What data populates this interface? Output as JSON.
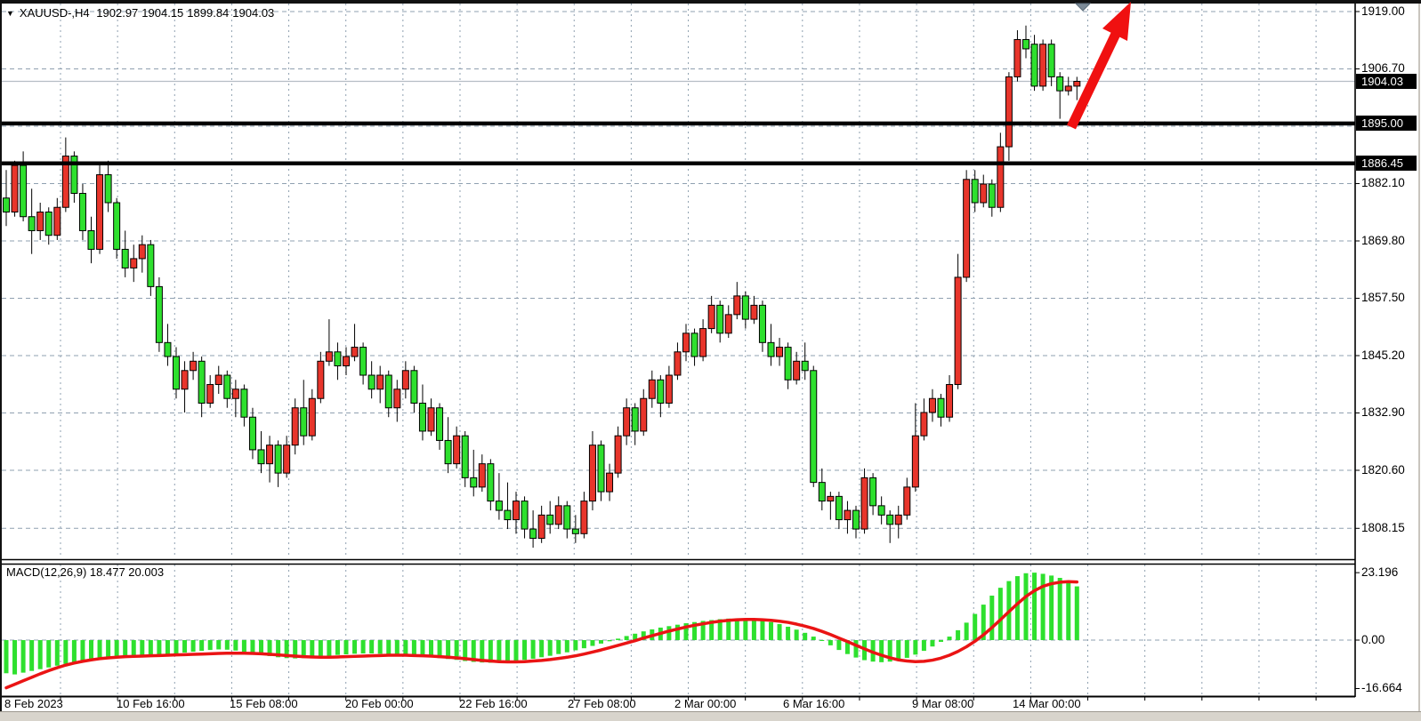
{
  "window": {
    "symbol": "XAUUSD-,H4",
    "ohlc": {
      "open": "1902.97",
      "high": "1904.15",
      "low": "1899.84",
      "close": "1904.03"
    }
  },
  "colors": {
    "bull_candle": "#e8352b",
    "bear_candle": "#2ee02e",
    "candle_outline": "#000000",
    "macd_histogram": "#2ee02e",
    "macd_signal_line": "#ea1414",
    "grid": "#8fa0b0",
    "level_line": "#000000",
    "current_price_line": "#b6bdc5",
    "arrow": "#f01010",
    "marker_triangle": "#7d8b98",
    "label_box_bg": "#000000",
    "label_box_text": "#ffffff",
    "bottom_strip": "#d8d4cc"
  },
  "price_axis": {
    "labels": [
      {
        "text": "1919.00",
        "price": 1919.0
      },
      {
        "text": "1906.70",
        "price": 1906.7
      },
      {
        "text": "1882.10",
        "price": 1882.1
      },
      {
        "text": "1869.80",
        "price": 1869.8
      },
      {
        "text": "1857.50",
        "price": 1857.5
      },
      {
        "text": "1845.20",
        "price": 1845.2
      },
      {
        "text": "1832.90",
        "price": 1832.9
      },
      {
        "text": "1820.60",
        "price": 1820.6
      },
      {
        "text": "1808.15",
        "price": 1808.15
      }
    ],
    "boxed_labels": [
      {
        "text": "1904.03",
        "price": 1904.03,
        "kind": "current-price"
      },
      {
        "text": "1895.00",
        "price": 1895.0,
        "kind": "level"
      },
      {
        "text": "1886.45",
        "price": 1886.45,
        "kind": "level"
      }
    ]
  },
  "time_axis": {
    "labels": [
      {
        "text": "8 Feb 2023",
        "x": 5
      },
      {
        "text": "10 Feb 16:00",
        "x": 131
      },
      {
        "text": "15 Feb 08:00",
        "x": 258
      },
      {
        "text": "20 Feb 00:00",
        "x": 388
      },
      {
        "text": "22 Feb 16:00",
        "x": 516
      },
      {
        "text": "27 Feb 08:00",
        "x": 638
      },
      {
        "text": "2 Mar 00:00",
        "x": 758
      },
      {
        "text": "6 Mar 16:00",
        "x": 880
      },
      {
        "text": "9 Mar 08:00",
        "x": 1025
      },
      {
        "text": "14 Mar 00:00",
        "x": 1138
      }
    ]
  },
  "macd": {
    "label": "MACD(12,26,9) 18.477 20.003",
    "macd_value": "18.477",
    "signal_value": "20.003",
    "scale_labels": [
      {
        "text": "23.196",
        "value": 23.196
      },
      {
        "text": "0.00",
        "value": 0.0
      },
      {
        "text": "-16.664",
        "value": -16.664
      }
    ]
  },
  "annotations": {
    "up_arrow": {
      "name": "red-up-arrow",
      "color": "#f01010"
    },
    "marker": {
      "name": "gray-down-triangle",
      "color": "#7d8b98"
    }
  },
  "chart_data": {
    "type": "candlestick",
    "title": "XAUUSD- H4",
    "note": "bullish candles are red, bearish candles are green on this chart",
    "ylim": [
      1804,
      1921
    ],
    "y_grid_prices": [
      1919.0,
      1906.7,
      1894.4,
      1882.1,
      1869.8,
      1857.5,
      1845.2,
      1832.9,
      1820.6,
      1808.15
    ],
    "horizontal_levels": [
      {
        "price": 1895.0,
        "style": "thick-black"
      },
      {
        "price": 1886.45,
        "style": "thick-black"
      }
    ],
    "current_price": 1904.03,
    "candles_ohlc": [
      [
        1879,
        1885,
        1873,
        1876
      ],
      [
        1876,
        1887,
        1875,
        1886
      ],
      [
        1886,
        1889,
        1874,
        1875
      ],
      [
        1875,
        1881,
        1867,
        1872
      ],
      [
        1872,
        1878,
        1870,
        1876
      ],
      [
        1876,
        1877,
        1869,
        1871
      ],
      [
        1871,
        1879,
        1870,
        1877
      ],
      [
        1877,
        1892,
        1876,
        1888
      ],
      [
        1888,
        1889,
        1878,
        1880
      ],
      [
        1880,
        1882,
        1870,
        1872
      ],
      [
        1872,
        1875,
        1865,
        1868
      ],
      [
        1868,
        1886,
        1867,
        1884
      ],
      [
        1884,
        1887,
        1876,
        1878
      ],
      [
        1878,
        1879,
        1866,
        1868
      ],
      [
        1868,
        1872,
        1862,
        1864
      ],
      [
        1864,
        1869,
        1861,
        1866
      ],
      [
        1866,
        1871,
        1863,
        1869
      ],
      [
        1869,
        1870,
        1858,
        1860
      ],
      [
        1860,
        1862,
        1846,
        1848
      ],
      [
        1848,
        1852,
        1843,
        1845
      ],
      [
        1845,
        1847,
        1836,
        1838
      ],
      [
        1838,
        1844,
        1833,
        1842
      ],
      [
        1842,
        1846,
        1840,
        1844
      ],
      [
        1844,
        1845,
        1832,
        1835
      ],
      [
        1835,
        1841,
        1834,
        1839
      ],
      [
        1839,
        1843,
        1837,
        1841
      ],
      [
        1841,
        1842,
        1834,
        1836
      ],
      [
        1836,
        1840,
        1832,
        1838
      ],
      [
        1838,
        1839,
        1830,
        1832
      ],
      [
        1832,
        1834,
        1823,
        1825
      ],
      [
        1825,
        1829,
        1820,
        1822
      ],
      [
        1822,
        1828,
        1818,
        1826
      ],
      [
        1826,
        1827,
        1817,
        1820
      ],
      [
        1820,
        1828,
        1819,
        1826
      ],
      [
        1826,
        1836,
        1824,
        1834
      ],
      [
        1834,
        1840,
        1826,
        1828
      ],
      [
        1828,
        1838,
        1827,
        1836
      ],
      [
        1836,
        1846,
        1835,
        1844
      ],
      [
        1844,
        1853,
        1843,
        1846
      ],
      [
        1846,
        1848,
        1840,
        1843
      ],
      [
        1843,
        1847,
        1841,
        1845
      ],
      [
        1845,
        1852,
        1844,
        1847
      ],
      [
        1847,
        1848,
        1839,
        1841
      ],
      [
        1841,
        1844,
        1836,
        1838
      ],
      [
        1838,
        1843,
        1835,
        1841
      ],
      [
        1841,
        1842,
        1832,
        1834
      ],
      [
        1834,
        1840,
        1831,
        1838
      ],
      [
        1838,
        1844,
        1836,
        1842
      ],
      [
        1842,
        1843,
        1833,
        1835
      ],
      [
        1835,
        1839,
        1827,
        1829
      ],
      [
        1829,
        1836,
        1828,
        1834
      ],
      [
        1834,
        1835,
        1825,
        1827
      ],
      [
        1827,
        1832,
        1820,
        1822
      ],
      [
        1822,
        1830,
        1821,
        1828
      ],
      [
        1828,
        1829,
        1817,
        1819
      ],
      [
        1819,
        1825,
        1815,
        1817
      ],
      [
        1817,
        1824,
        1816,
        1822
      ],
      [
        1822,
        1823,
        1812,
        1814
      ],
      [
        1814,
        1820,
        1810,
        1812
      ],
      [
        1812,
        1818,
        1808,
        1810
      ],
      [
        1810,
        1816,
        1807,
        1814
      ],
      [
        1814,
        1815,
        1806,
        1808
      ],
      [
        1808,
        1812,
        1804,
        1806
      ],
      [
        1806,
        1813,
        1805,
        1811
      ],
      [
        1811,
        1814,
        1807,
        1809
      ],
      [
        1809,
        1815,
        1808,
        1813
      ],
      [
        1813,
        1814,
        1806,
        1808
      ],
      [
        1808,
        1811,
        1805,
        1807
      ],
      [
        1807,
        1816,
        1806,
        1814
      ],
      [
        1814,
        1829,
        1812,
        1826
      ],
      [
        1826,
        1827,
        1814,
        1816
      ],
      [
        1816,
        1822,
        1814,
        1820
      ],
      [
        1820,
        1830,
        1819,
        1828
      ],
      [
        1828,
        1836,
        1826,
        1834
      ],
      [
        1834,
        1835,
        1826,
        1829
      ],
      [
        1829,
        1838,
        1828,
        1836
      ],
      [
        1836,
        1842,
        1834,
        1840
      ],
      [
        1840,
        1841,
        1832,
        1835
      ],
      [
        1835,
        1843,
        1834,
        1841
      ],
      [
        1841,
        1848,
        1840,
        1846
      ],
      [
        1846,
        1852,
        1844,
        1850
      ],
      [
        1850,
        1851,
        1843,
        1845
      ],
      [
        1845,
        1853,
        1844,
        1851
      ],
      [
        1851,
        1858,
        1850,
        1856
      ],
      [
        1856,
        1857,
        1848,
        1850
      ],
      [
        1850,
        1856,
        1849,
        1854
      ],
      [
        1854,
        1861,
        1853,
        1858
      ],
      [
        1858,
        1859,
        1851,
        1853
      ],
      [
        1853,
        1858,
        1852,
        1856
      ],
      [
        1856,
        1857,
        1846,
        1848
      ],
      [
        1848,
        1852,
        1843,
        1845
      ],
      [
        1845,
        1849,
        1843,
        1847
      ],
      [
        1847,
        1848,
        1838,
        1840
      ],
      [
        1840,
        1846,
        1839,
        1844
      ],
      [
        1844,
        1848,
        1840,
        1842
      ],
      [
        1842,
        1843,
        1817,
        1818
      ],
      [
        1818,
        1821,
        1812,
        1814
      ],
      [
        1814,
        1816,
        1810,
        1815
      ],
      [
        1815,
        1816,
        1808,
        1810
      ],
      [
        1810,
        1814,
        1807,
        1812
      ],
      [
        1812,
        1813,
        1806,
        1808
      ],
      [
        1808,
        1821,
        1807,
        1819
      ],
      [
        1819,
        1820,
        1811,
        1813
      ],
      [
        1813,
        1815,
        1809,
        1811
      ],
      [
        1811,
        1812,
        1805,
        1809
      ],
      [
        1809,
        1813,
        1806,
        1811
      ],
      [
        1811,
        1819,
        1810,
        1817
      ],
      [
        1817,
        1835,
        1816,
        1828
      ],
      [
        1828,
        1836,
        1827,
        1833
      ],
      [
        1833,
        1838,
        1831,
        1836
      ],
      [
        1836,
        1837,
        1830,
        1832
      ],
      [
        1832,
        1841,
        1831,
        1839
      ],
      [
        1839,
        1867,
        1838,
        1862
      ],
      [
        1862,
        1885,
        1861,
        1883
      ],
      [
        1883,
        1885,
        1876,
        1878
      ],
      [
        1878,
        1884,
        1877,
        1882
      ],
      [
        1882,
        1883,
        1875,
        1877
      ],
      [
        1877,
        1893,
        1876,
        1890
      ],
      [
        1890,
        1906,
        1887,
        1905
      ],
      [
        1905,
        1915,
        1904,
        1913
      ],
      [
        1913,
        1916,
        1909,
        1911
      ],
      [
        1912,
        1914,
        1902,
        1903
      ],
      [
        1903,
        1913,
        1902,
        1912
      ],
      [
        1912,
        1913,
        1903,
        1905
      ],
      [
        1905,
        1906,
        1896,
        1902
      ],
      [
        1902,
        1905,
        1901,
        1903
      ],
      [
        1903,
        1905,
        1900,
        1904.03
      ]
    ],
    "macd_histogram": [
      -11.4,
      -11.8,
      -11.2,
      -10.6,
      -10.0,
      -9.4,
      -8.8,
      -8.2,
      -7.6,
      -7.1,
      -6.7,
      -6.3,
      -6.0,
      -5.7,
      -5.5,
      -5.3,
      -5.1,
      -5.0,
      -4.9,
      -4.8,
      -4.6,
      -4.3,
      -4.0,
      -3.7,
      -3.4,
      -3.2,
      -3.3,
      -3.6,
      -4.0,
      -4.5,
      -5.0,
      -5.5,
      -5.9,
      -6.2,
      -6.3,
      -6.2,
      -6.0,
      -5.7,
      -5.4,
      -5.1,
      -4.9,
      -4.7,
      -4.6,
      -4.6,
      -4.7,
      -4.9,
      -5.1,
      -5.3,
      -5.5,
      -5.7,
      -5.9,
      -6.2,
      -6.5,
      -6.8,
      -7.2,
      -7.5,
      -7.7,
      -7.8,
      -7.7,
      -7.5,
      -7.2,
      -6.8,
      -6.4,
      -5.9,
      -5.4,
      -4.8,
      -4.2,
      -3.5,
      -2.8,
      -2.0,
      -1.2,
      -0.4,
      0.5,
      1.4,
      2.2,
      3.0,
      3.7,
      4.3,
      4.8,
      5.3,
      5.8,
      6.2,
      6.6,
      6.9,
      7.2,
      7.4,
      7.5,
      7.4,
      7.2,
      6.8,
      6.2,
      5.5,
      4.6,
      3.6,
      2.5,
      1.2,
      -0.2,
      -1.8,
      -3.4,
      -4.8,
      -6.0,
      -6.9,
      -7.4,
      -7.6,
      -7.4,
      -6.9,
      -6.1,
      -5.0,
      -3.7,
      -2.2,
      -0.6,
      1.2,
      3.4,
      6.0,
      9.0,
      12.2,
      15.3,
      18.0,
      20.3,
      22.0,
      23.0,
      23.2,
      22.8,
      22.2,
      21.4,
      20.5,
      18.477
    ],
    "macd_signal": [
      -16.4,
      -15.2,
      -14.0,
      -12.8,
      -11.6,
      -10.5,
      -9.5,
      -8.6,
      -7.9,
      -7.3,
      -6.8,
      -6.4,
      -6.1,
      -5.9,
      -5.7,
      -5.6,
      -5.5,
      -5.4,
      -5.3,
      -5.2,
      -5.1,
      -5.0,
      -4.9,
      -4.8,
      -4.7,
      -4.6,
      -4.5,
      -4.5,
      -4.5,
      -4.6,
      -4.7,
      -4.9,
      -5.1,
      -5.3,
      -5.5,
      -5.7,
      -5.8,
      -5.9,
      -5.9,
      -5.8,
      -5.7,
      -5.6,
      -5.5,
      -5.4,
      -5.3,
      -5.2,
      -5.2,
      -5.2,
      -5.3,
      -5.4,
      -5.5,
      -5.7,
      -5.9,
      -6.1,
      -6.4,
      -6.7,
      -7.0,
      -7.2,
      -7.4,
      -7.5,
      -7.5,
      -7.4,
      -7.2,
      -7.0,
      -6.7,
      -6.3,
      -5.9,
      -5.4,
      -4.8,
      -4.1,
      -3.4,
      -2.6,
      -1.8,
      -1.0,
      -0.2,
      0.7,
      1.5,
      2.3,
      3.1,
      3.8,
      4.5,
      5.1,
      5.6,
      6.1,
      6.5,
      6.8,
      7.0,
      7.1,
      7.1,
      7.0,
      6.8,
      6.5,
      6.1,
      5.5,
      4.8,
      4.0,
      3.0,
      1.9,
      0.7,
      -0.5,
      -1.8,
      -3.0,
      -4.2,
      -5.2,
      -6.1,
      -6.8,
      -7.2,
      -7.4,
      -7.3,
      -6.9,
      -6.2,
      -5.2,
      -3.9,
      -2.3,
      -0.4,
      1.8,
      4.3,
      7.0,
      9.8,
      12.5,
      15.0,
      17.0,
      18.5,
      19.4,
      19.9,
      20.1,
      20.003
    ],
    "macd_ylim": [
      -18,
      24
    ]
  }
}
